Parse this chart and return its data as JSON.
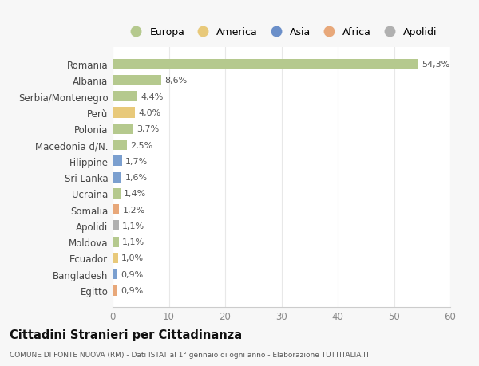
{
  "categories": [
    "Romania",
    "Albania",
    "Serbia/Montenegro",
    "Perù",
    "Polonia",
    "Macedonia d/N.",
    "Filippine",
    "Sri Lanka",
    "Ucraina",
    "Somalia",
    "Apolidi",
    "Moldova",
    "Ecuador",
    "Bangladesh",
    "Egitto"
  ],
  "values": [
    54.3,
    8.6,
    4.4,
    4.0,
    3.7,
    2.5,
    1.7,
    1.6,
    1.4,
    1.2,
    1.1,
    1.1,
    1.0,
    0.9,
    0.9
  ],
  "labels": [
    "54,3%",
    "8,6%",
    "4,4%",
    "4,0%",
    "3,7%",
    "2,5%",
    "1,7%",
    "1,6%",
    "1,4%",
    "1,2%",
    "1,1%",
    "1,1%",
    "1,0%",
    "0,9%",
    "0,9%"
  ],
  "colors": [
    "#b5c98e",
    "#b5c98e",
    "#b5c98e",
    "#e8c97a",
    "#b5c98e",
    "#b5c98e",
    "#7b9fcf",
    "#7b9fcf",
    "#b5c98e",
    "#e8a87a",
    "#b0b0b0",
    "#b5c98e",
    "#e8c97a",
    "#7b9fcf",
    "#e8a87a"
  ],
  "legend_labels": [
    "Europa",
    "America",
    "Asia",
    "Africa",
    "Apolidi"
  ],
  "legend_colors": [
    "#b5c98e",
    "#e8c97a",
    "#6b8fc9",
    "#e8a87a",
    "#b0b0b0"
  ],
  "title": "Cittadini Stranieri per Cittadinanza",
  "subtitle": "COMUNE DI FONTE NUOVA (RM) - Dati ISTAT al 1° gennaio di ogni anno - Elaborazione TUTTITALIA.IT",
  "xlim": [
    0,
    60
  ],
  "xticks": [
    0,
    10,
    20,
    30,
    40,
    50,
    60
  ],
  "bg_color": "#f7f7f7",
  "plot_bg_color": "#ffffff",
  "grid_color": "#e8e8e8"
}
